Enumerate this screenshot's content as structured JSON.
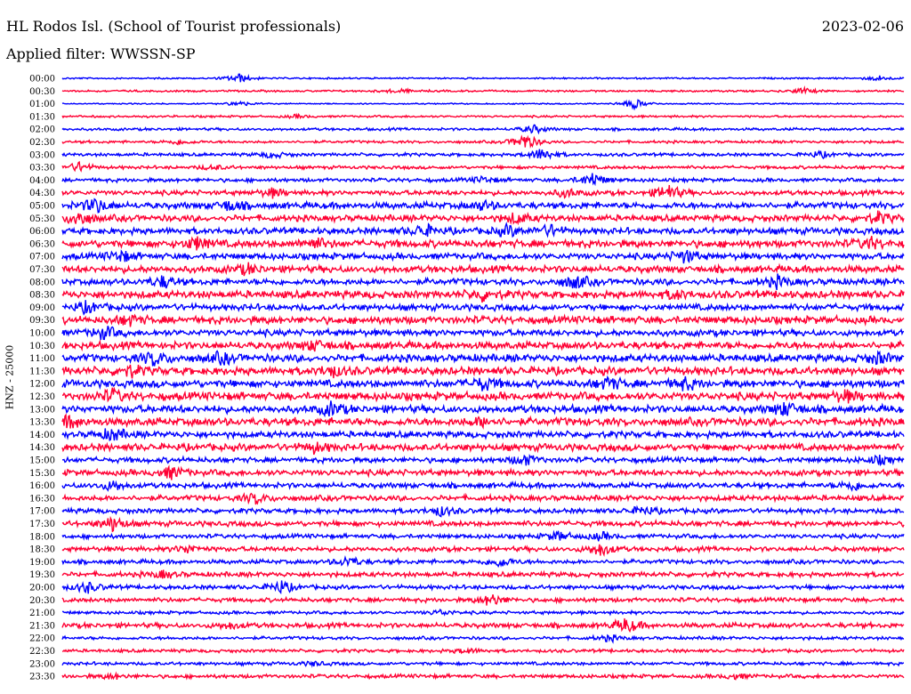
{
  "header": {
    "station": "HL Rodos Isl. (School of Tourist professionals)",
    "date": "2023-02-06",
    "filter": "Applied filter: WWSSN-SP"
  },
  "chart_data": {
    "type": "line",
    "title": "HL Rodos Isl. (School of Tourist professionals)",
    "subtitle": "Applied filter: WWSSN-SP",
    "ylabel": "HNZ - 25000",
    "colors": {
      "even_rows": "#0000ff",
      "odd_rows": "#ff0033"
    },
    "row_labels": [
      "00:00",
      "00:30",
      "01:00",
      "01:30",
      "02:00",
      "02:30",
      "03:00",
      "03:30",
      "04:00",
      "04:30",
      "05:00",
      "05:30",
      "06:00",
      "06:30",
      "07:00",
      "07:30",
      "08:00",
      "08:30",
      "09:00",
      "09:30",
      "10:00",
      "10:30",
      "11:00",
      "11:30",
      "12:00",
      "12:30",
      "13:00",
      "13:30",
      "14:00",
      "14:30",
      "15:00",
      "15:30",
      "16:00",
      "16:30",
      "17:00",
      "17:30",
      "18:00",
      "18:30",
      "19:00",
      "19:30",
      "20:00",
      "20:30",
      "21:00",
      "21:30",
      "22:00",
      "22:30",
      "23:00",
      "23:30"
    ],
    "series": [
      {
        "label": "00:00",
        "noise": 0.15,
        "events": [
          [
            0.21,
            0.9
          ],
          [
            0.97,
            0.5
          ]
        ]
      },
      {
        "label": "00:30",
        "noise": 0.18,
        "events": [
          [
            0.4,
            0.4
          ],
          [
            0.88,
            0.6
          ]
        ]
      },
      {
        "label": "01:00",
        "noise": 0.12,
        "events": [
          [
            0.21,
            0.5
          ],
          [
            0.68,
            1.0
          ]
        ]
      },
      {
        "label": "01:30",
        "noise": 0.2,
        "events": [
          [
            0.28,
            0.3
          ]
        ]
      },
      {
        "label": "02:00",
        "noise": 0.25,
        "events": [
          [
            0.56,
            0.8
          ]
        ]
      },
      {
        "label": "02:30",
        "noise": 0.25,
        "events": [
          [
            0.55,
            1.6
          ],
          [
            0.14,
            0.5
          ]
        ]
      },
      {
        "label": "03:00",
        "noise": 0.3,
        "events": [
          [
            0.57,
            1.3
          ],
          [
            0.25,
            0.6
          ],
          [
            0.9,
            0.6
          ]
        ]
      },
      {
        "label": "03:30",
        "noise": 0.3,
        "events": [
          [
            0.02,
            0.9
          ],
          [
            0.18,
            0.5
          ]
        ]
      },
      {
        "label": "04:00",
        "noise": 0.35,
        "events": [
          [
            0.63,
            1.4
          ],
          [
            0.5,
            0.6
          ]
        ]
      },
      {
        "label": "04:30",
        "noise": 0.45,
        "events": [
          [
            0.72,
            1.6
          ],
          [
            0.6,
            0.8
          ],
          [
            0.25,
            0.8
          ]
        ]
      },
      {
        "label": "05:00",
        "noise": 0.6,
        "events": [
          [
            0.04,
            1.5
          ],
          [
            0.2,
            1.0
          ],
          [
            0.5,
            0.8
          ]
        ]
      },
      {
        "label": "05:30",
        "noise": 0.6,
        "events": [
          [
            0.02,
            1.4
          ],
          [
            0.54,
            1.0
          ],
          [
            0.97,
            1.0
          ]
        ]
      },
      {
        "label": "06:00",
        "noise": 0.6,
        "events": [
          [
            0.43,
            1.2
          ],
          [
            0.53,
            1.0
          ],
          [
            0.58,
            1.0
          ]
        ]
      },
      {
        "label": "06:30",
        "noise": 0.7,
        "events": [
          [
            0.16,
            1.2
          ],
          [
            0.3,
            1.0
          ],
          [
            0.96,
            1.0
          ]
        ]
      },
      {
        "label": "07:00",
        "noise": 0.6,
        "events": [
          [
            0.07,
            1.0
          ],
          [
            0.74,
            1.2
          ]
        ]
      },
      {
        "label": "07:30",
        "noise": 0.65,
        "events": [
          [
            0.22,
            0.9
          ]
        ]
      },
      {
        "label": "08:00",
        "noise": 0.6,
        "events": [
          [
            0.12,
            1.1
          ],
          [
            0.61,
            1.3
          ],
          [
            0.85,
            1.0
          ]
        ]
      },
      {
        "label": "08:30",
        "noise": 0.7,
        "events": [
          [
            0.5,
            1.0
          ],
          [
            0.73,
            0.8
          ]
        ]
      },
      {
        "label": "09:00",
        "noise": 0.6,
        "events": [
          [
            0.03,
            1.0
          ]
        ]
      },
      {
        "label": "09:30",
        "noise": 0.7,
        "events": [
          [
            0.08,
            0.9
          ]
        ]
      },
      {
        "label": "10:00",
        "noise": 0.6,
        "events": [
          [
            0.05,
            1.2
          ]
        ]
      },
      {
        "label": "10:30",
        "noise": 0.7,
        "events": [
          [
            0.3,
            0.9
          ]
        ]
      },
      {
        "label": "11:00",
        "noise": 0.7,
        "events": [
          [
            0.11,
            1.4
          ],
          [
            0.19,
            1.0
          ],
          [
            0.97,
            1.0
          ]
        ]
      },
      {
        "label": "11:30",
        "noise": 0.75,
        "events": [
          [
            0.08,
            1.0
          ],
          [
            0.32,
            1.0
          ]
        ]
      },
      {
        "label": "12:00",
        "noise": 0.7,
        "events": [
          [
            0.5,
            1.2
          ],
          [
            0.65,
            1.2
          ],
          [
            0.74,
            1.1
          ]
        ]
      },
      {
        "label": "12:30",
        "noise": 0.75,
        "events": [
          [
            0.06,
            1.1
          ],
          [
            0.93,
            1.0
          ]
        ]
      },
      {
        "label": "13:00",
        "noise": 0.7,
        "events": [
          [
            0.32,
            1.2
          ],
          [
            0.86,
            1.3
          ]
        ]
      },
      {
        "label": "13:30",
        "noise": 0.75,
        "events": [
          [
            0.01,
            1.0
          ],
          [
            0.5,
            0.8
          ]
        ]
      },
      {
        "label": "14:00",
        "noise": 0.6,
        "events": [
          [
            0.06,
            1.2
          ]
        ]
      },
      {
        "label": "14:30",
        "noise": 0.65,
        "events": [
          [
            0.3,
            0.9
          ]
        ]
      },
      {
        "label": "15:00",
        "noise": 0.5,
        "events": [
          [
            0.55,
            1.0
          ],
          [
            0.97,
            0.7
          ]
        ]
      },
      {
        "label": "15:30",
        "noise": 0.55,
        "events": [
          [
            0.13,
            1.2
          ]
        ]
      },
      {
        "label": "16:00",
        "noise": 0.5,
        "events": [
          [
            0.06,
            0.9
          ],
          [
            0.94,
            0.9
          ]
        ]
      },
      {
        "label": "16:30",
        "noise": 0.5,
        "events": [
          [
            0.23,
            1.0
          ]
        ]
      },
      {
        "label": "17:00",
        "noise": 0.45,
        "events": [
          [
            0.45,
            0.9
          ],
          [
            0.69,
            0.8
          ]
        ]
      },
      {
        "label": "17:30",
        "noise": 0.5,
        "events": [
          [
            0.06,
            1.4
          ]
        ]
      },
      {
        "label": "18:00",
        "noise": 0.4,
        "events": [
          [
            0.59,
            0.9
          ],
          [
            0.64,
            0.7
          ]
        ]
      },
      {
        "label": "18:30",
        "noise": 0.45,
        "events": [
          [
            0.15,
            0.8
          ],
          [
            0.64,
            1.3
          ]
        ]
      },
      {
        "label": "19:00",
        "noise": 0.4,
        "events": [
          [
            0.34,
            1.0
          ],
          [
            0.52,
            1.0
          ]
        ]
      },
      {
        "label": "19:30",
        "noise": 0.45,
        "events": [
          [
            0.12,
            0.7
          ]
        ]
      },
      {
        "label": "20:00",
        "noise": 0.4,
        "events": [
          [
            0.03,
            1.0
          ],
          [
            0.26,
            1.2
          ]
        ]
      },
      {
        "label": "20:30",
        "noise": 0.4,
        "events": [
          [
            0.51,
            1.2
          ]
        ]
      },
      {
        "label": "21:00",
        "noise": 0.3,
        "events": [
          [
            0.45,
            0.5
          ]
        ]
      },
      {
        "label": "21:30",
        "noise": 0.45,
        "events": [
          [
            0.67,
            1.4
          ],
          [
            0.2,
            0.6
          ]
        ]
      },
      {
        "label": "22:00",
        "noise": 0.3,
        "events": [
          [
            0.65,
            0.6
          ]
        ]
      },
      {
        "label": "22:30",
        "noise": 0.3,
        "events": [
          [
            0.48,
            0.5
          ]
        ]
      },
      {
        "label": "23:00",
        "noise": 0.3,
        "events": [
          [
            0.3,
            0.4
          ]
        ]
      },
      {
        "label": "23:30",
        "noise": 0.35,
        "events": [
          [
            0.06,
            0.5
          ],
          [
            0.8,
            0.5
          ]
        ]
      }
    ]
  }
}
